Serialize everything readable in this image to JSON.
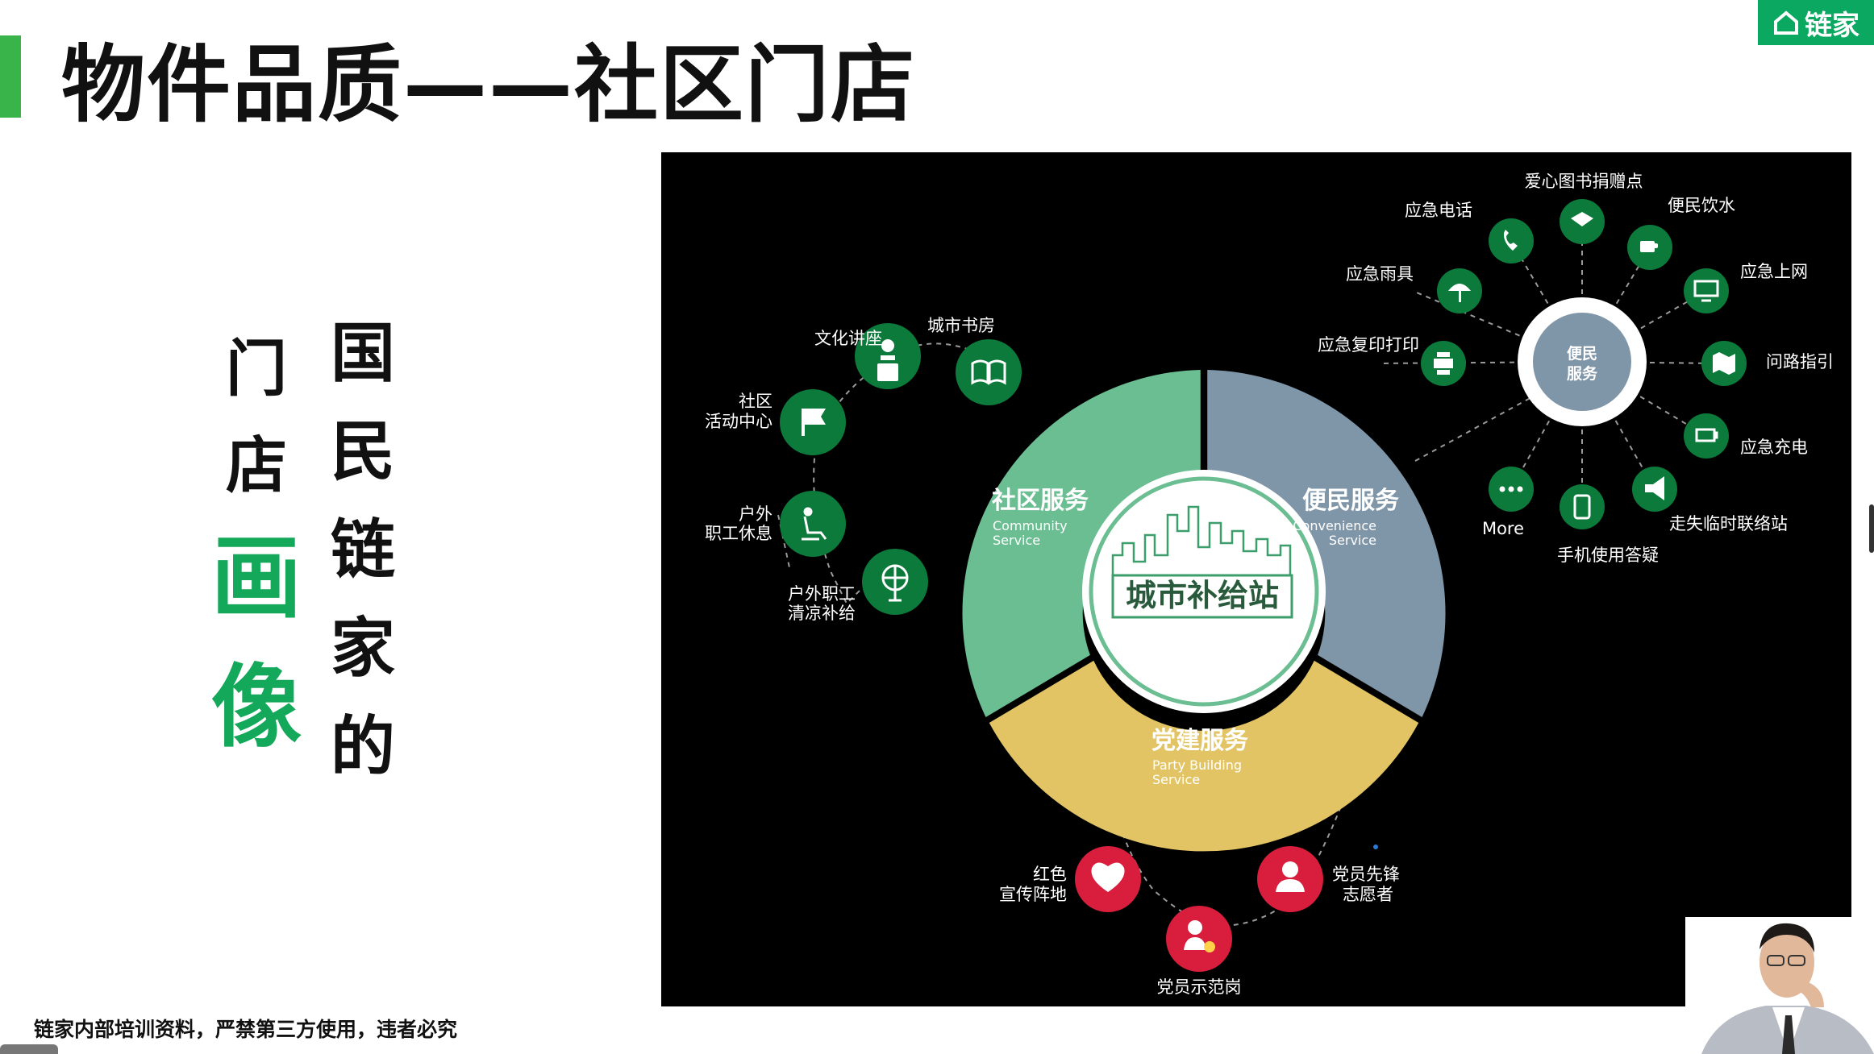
{
  "slide": {
    "title": "物件品质——社区门店",
    "logo_text": "链家",
    "left_col": [
      "门",
      "店"
    ],
    "left_col_green": [
      "画",
      "像"
    ],
    "right_col": [
      "国",
      "民",
      "链",
      "家",
      "的"
    ],
    "footer": "链家内部培训资料，严禁第三方使用，违者必究"
  },
  "diagram": {
    "center": "城市补给站",
    "segments": {
      "community": {
        "title": "社区服务",
        "sub1": "Community",
        "sub2": "Service"
      },
      "convenience": {
        "title": "便民服务",
        "sub1": "Convenience",
        "sub2": "Service"
      },
      "party": {
        "title": "党建服务",
        "sub1": "Party Building",
        "sub2": "Service"
      }
    },
    "hub": {
      "line1": "便民",
      "line2": "服务"
    },
    "community_nodes": [
      "文化讲座",
      "城市书房",
      "社区",
      "活动中心",
      "户外",
      "职工休息",
      "户外职工",
      "清凉补给"
    ],
    "convenience_nodes": [
      "爱心图书捐赠点",
      "应急电话",
      "便民饮水",
      "应急雨具",
      "应急上网",
      "应急复印打印",
      "问路指引",
      "应急充电",
      "More",
      "手机使用答疑",
      "走失临时联络站"
    ],
    "party_nodes": [
      "红色",
      "宣传阵地",
      "党员先锋",
      "志愿者",
      "党员示范岗"
    ],
    "colors": {
      "green": "#6bbd92",
      "slate": "#7f95a8",
      "gold": "#e2c465",
      "node_green": "#0b7a3b",
      "node_red": "#d81e3c",
      "accent": "#14a85a"
    }
  }
}
